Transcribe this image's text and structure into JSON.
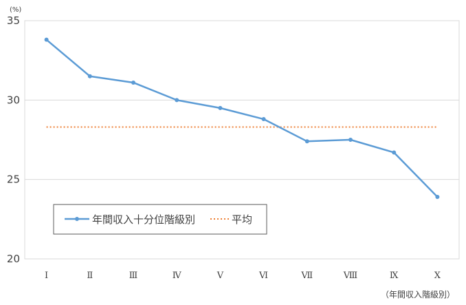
{
  "chart_data": {
    "type": "line",
    "unit_label": "(%)",
    "xlabel": "（年間収入階級別）",
    "categories": [
      "Ⅰ",
      "Ⅱ",
      "Ⅲ",
      "Ⅳ",
      "Ⅴ",
      "Ⅵ",
      "Ⅶ",
      "Ⅷ",
      "Ⅸ",
      "Ⅹ"
    ],
    "series": [
      {
        "name": "年間収入十分位階級別",
        "values": [
          33.8,
          31.5,
          31.1,
          30.0,
          29.5,
          28.8,
          27.4,
          27.5,
          26.7,
          23.9
        ],
        "color": "#5b9bd5",
        "marker": "circle"
      }
    ],
    "reference_line": {
      "name": "平均",
      "value": 28.3,
      "color": "#ed7d31",
      "style": "dotted"
    },
    "ylim": [
      20,
      35
    ],
    "yticks": [
      20,
      25,
      30,
      35
    ],
    "grid": true,
    "legend_position": "bottom-left"
  }
}
